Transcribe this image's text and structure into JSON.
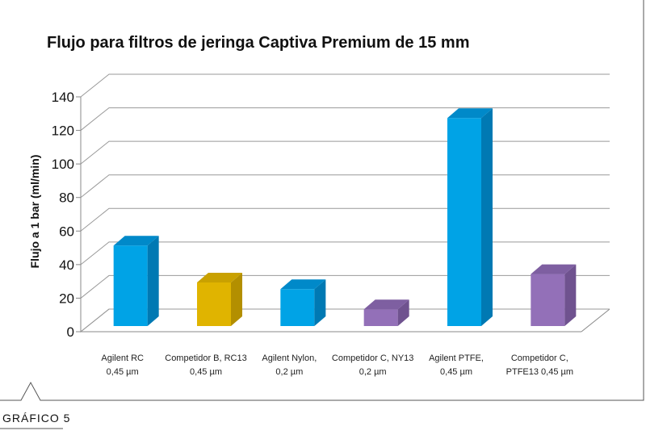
{
  "figure_label": "GRÁFICO 5",
  "chart_data": {
    "type": "bar",
    "title": "Flujo para filtros de jeringa Captiva Premium de 15 mm",
    "xlabel": "",
    "ylabel": "Flujo a 1 bar (ml/min)",
    "ylim": [
      0,
      140
    ],
    "yticks": [
      0,
      20,
      40,
      60,
      80,
      100,
      120,
      140
    ],
    "grid": true,
    "legend": "none",
    "categories": [
      [
        "Agilent RC",
        "0,45 µm"
      ],
      [
        "Competidor B, RC13",
        "0,45 µm"
      ],
      [
        "Agilent Nylon,",
        "0,2 µm"
      ],
      [
        "Competidor C, NY13",
        "0,2 µm"
      ],
      [
        "Agilent PTFE,",
        "0,45 µm"
      ],
      [
        "Competidor C,",
        "PTFE13 0,45 µm"
      ]
    ],
    "values": [
      48,
      26,
      22,
      10,
      124,
      31
    ],
    "colors": [
      {
        "front": "#00a3e6",
        "side": "#0079b3",
        "top": "#0089c9"
      },
      {
        "front": "#e0b400",
        "side": "#b38f00",
        "top": "#c9a100"
      },
      {
        "front": "#00a3e6",
        "side": "#0079b3",
        "top": "#0089c9"
      },
      {
        "front": "#9370b8",
        "side": "#6f528f",
        "top": "#7e5fa1"
      },
      {
        "front": "#00a3e6",
        "side": "#0079b3",
        "top": "#0089c9"
      },
      {
        "front": "#9370b8",
        "side": "#6f528f",
        "top": "#7e5fa1"
      }
    ]
  }
}
